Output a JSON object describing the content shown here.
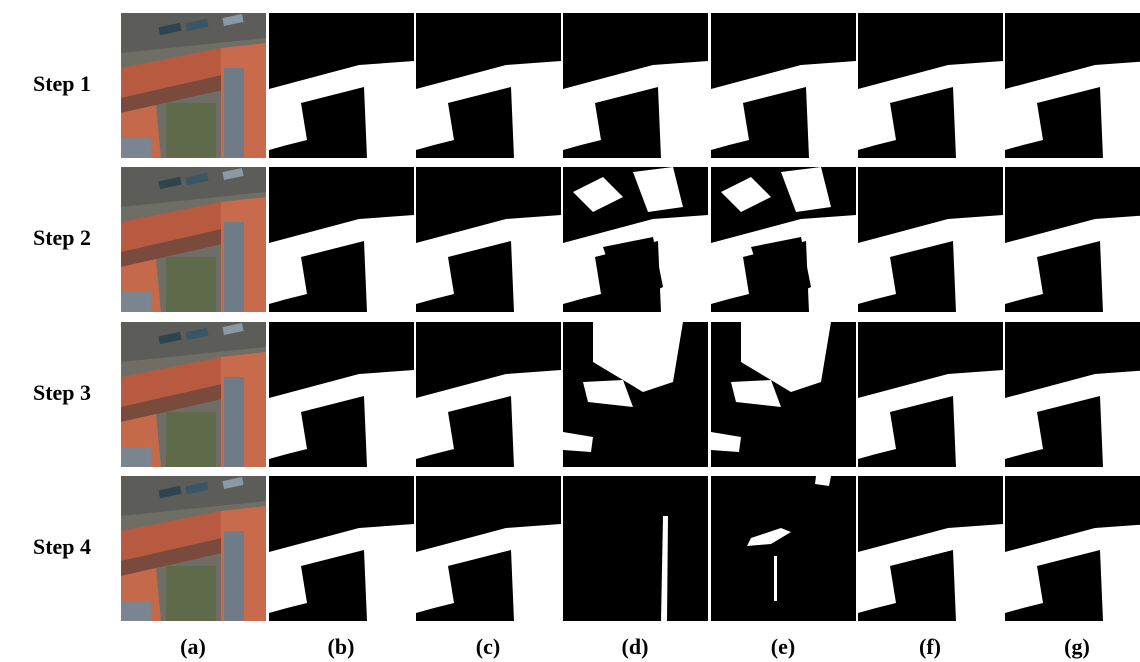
{
  "row_labels": [
    "Step 1",
    "Step 2",
    "Step 3",
    "Step 4"
  ],
  "column_labels": [
    "(a)",
    "(b)",
    "(c)",
    "(d)",
    "(e)",
    "(f)",
    "(g)"
  ]
}
